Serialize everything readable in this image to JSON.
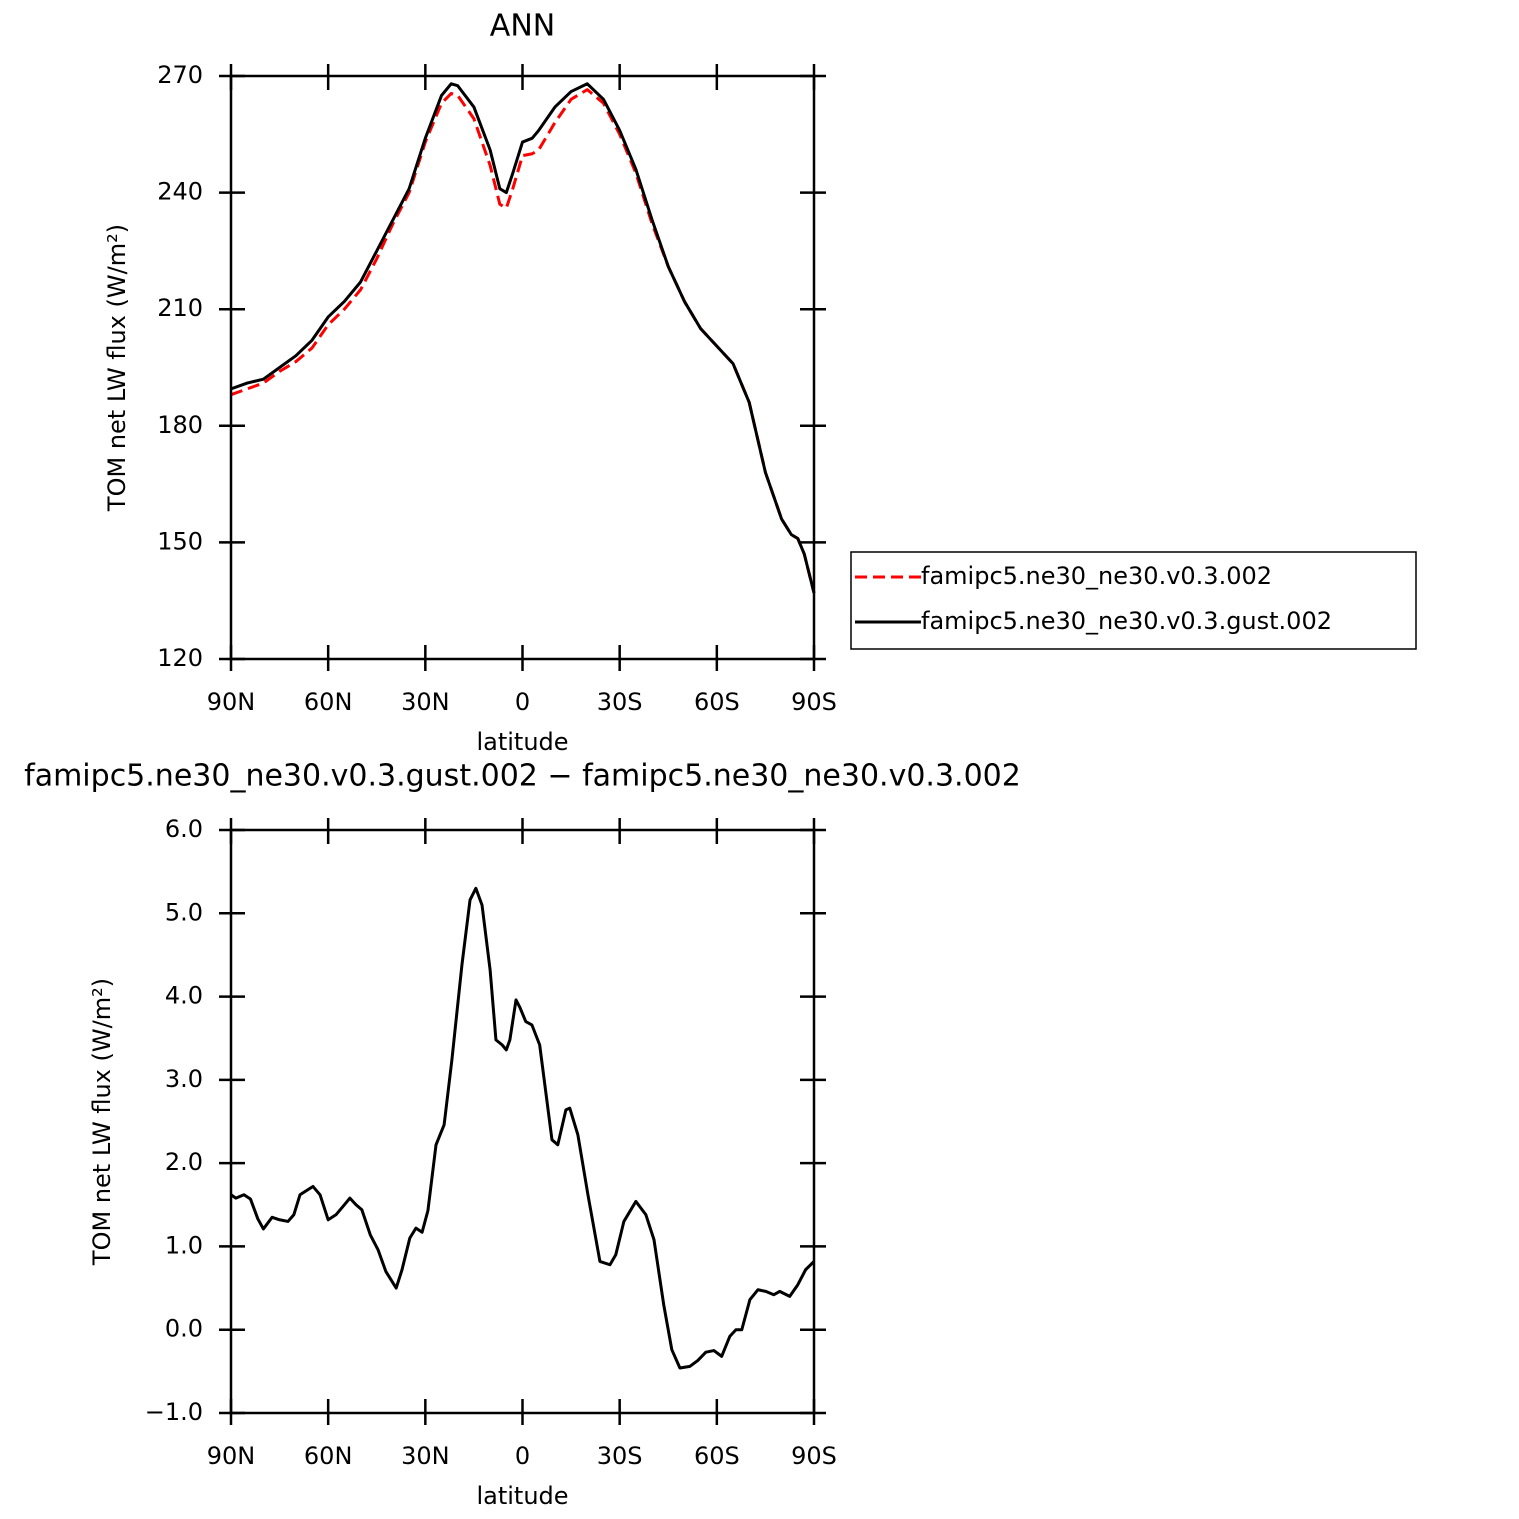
{
  "chart_data": [
    {
      "type": "line",
      "title": "ANN",
      "x_label": "latitude",
      "y_label": "TOM net LW flux (W/m²)",
      "x": [
        90,
        85,
        80,
        75,
        70,
        65,
        60,
        55,
        50,
        45,
        40,
        35,
        30,
        25,
        22,
        20,
        15,
        10,
        7,
        5,
        3,
        0,
        -3,
        -5,
        -10,
        -15,
        -20,
        -25,
        -30,
        -35,
        -40,
        -45,
        -50,
        -55,
        -60,
        -65,
        -70,
        -75,
        -80,
        -83,
        -85,
        -87,
        -90
      ],
      "series": [
        {
          "name": "famipc5.ne30_ne30.v0.3.002",
          "color": "#ff0000",
          "linestyle": "dashed",
          "values": [
            188,
            189.5,
            191,
            194,
            196.5,
            200,
            206,
            210,
            215,
            223,
            232,
            240,
            253,
            263,
            265.5,
            265,
            259,
            247,
            237,
            236,
            241,
            249.5,
            250,
            251,
            258,
            264,
            266.5,
            263,
            255,
            245,
            232,
            221,
            212,
            205,
            200.5,
            196,
            186,
            168,
            156,
            152,
            151,
            147,
            137
          ]
        },
        {
          "name": "famipc5.ne30_ne30.v0.3.gust.002",
          "color": "#000000",
          "linestyle": "solid",
          "values": [
            189.5,
            191,
            192,
            195,
            198,
            202,
            208,
            212,
            217,
            225,
            233,
            241,
            254,
            265,
            268,
            267.5,
            262,
            251,
            241,
            240,
            245,
            253,
            254,
            256,
            262,
            266,
            268,
            264,
            256,
            246,
            233,
            221,
            212,
            205,
            200.5,
            196,
            186,
            168,
            156,
            152,
            151,
            147,
            137
          ]
        }
      ],
      "xlim": [
        90,
        -90
      ],
      "xticks": [
        {
          "value": 90,
          "label": "90N"
        },
        {
          "value": 60,
          "label": "60N"
        },
        {
          "value": 30,
          "label": "30N"
        },
        0,
        {
          "value": -30,
          "label": "30S"
        },
        {
          "value": -60,
          "label": "60S"
        },
        {
          "value": -90,
          "label": "90S"
        }
      ],
      "ylim": [
        120,
        270
      ],
      "yticks": [
        120,
        150,
        180,
        210,
        240,
        270
      ],
      "legend": "right"
    },
    {
      "type": "line",
      "title": "famipc5.ne30_ne30.v0.3.gust.002 − famipc5.ne30_ne30.v0.3.002",
      "x_label": "latitude",
      "y_label": "TOM net LW flux (W/m²)",
      "x": [
        90,
        88.5,
        86,
        84,
        81.7,
        80,
        77.3,
        75,
        72.4,
        70.6,
        68.7,
        64.7,
        62.5,
        60,
        57.6,
        55,
        53.3,
        51.4,
        49.6,
        47,
        44.6,
        42.2,
        39,
        37.2,
        34.8,
        32.9,
        31,
        29.2,
        26.7,
        24.2,
        21.8,
        18.7,
        16.2,
        14.4,
        12.5,
        10,
        8.2,
        6.3,
        5,
        3.9,
        2,
        0.8,
        -1,
        -2.9,
        -5.3,
        -9.1,
        -10.9,
        -13.4,
        -14.6,
        -17.1,
        -20.2,
        -23.9,
        -27,
        -28.8,
        -31.3,
        -35,
        -38.1,
        -40.6,
        -43.6,
        -46.1,
        -48.6,
        -51.7,
        -54.1,
        -56.6,
        -59.1,
        -61.5,
        -64,
        -65.9,
        -67.7,
        -70.2,
        -72.7,
        -75.1,
        -77.6,
        -79.4,
        -82.5,
        -85,
        -87.4,
        -90
      ],
      "series": [
        {
          "name": "famipc5.ne30_ne30.v0.3.gust.002 − famipc5.ne30_ne30.v0.3.002",
          "color": "#000000",
          "linestyle": "solid",
          "values": [
            1.62,
            1.58,
            1.62,
            1.57,
            1.33,
            1.21,
            1.35,
            1.32,
            1.3,
            1.38,
            1.62,
            1.72,
            1.62,
            1.32,
            1.38,
            1.5,
            1.58,
            1.5,
            1.44,
            1.14,
            0.96,
            0.7,
            0.5,
            0.72,
            1.1,
            1.22,
            1.17,
            1.43,
            2.22,
            2.46,
            3.24,
            4.38,
            5.16,
            5.3,
            5.1,
            4.32,
            3.48,
            3.42,
            3.36,
            3.48,
            3.96,
            3.87,
            3.7,
            3.66,
            3.42,
            2.28,
            2.22,
            2.64,
            2.66,
            2.34,
            1.62,
            0.82,
            0.78,
            0.9,
            1.3,
            1.54,
            1.38,
            1.08,
            0.3,
            -0.24,
            -0.46,
            -0.44,
            -0.37,
            -0.27,
            -0.25,
            -0.32,
            -0.08,
            0.0,
            0.0,
            0.36,
            0.48,
            0.46,
            0.42,
            0.46,
            0.4,
            0.54,
            0.72,
            0.82
          ]
        }
      ],
      "xlim": [
        90,
        -90
      ],
      "xticks": [
        {
          "value": 90,
          "label": "90N"
        },
        {
          "value": 60,
          "label": "60N"
        },
        {
          "value": 30,
          "label": "30N"
        },
        0,
        {
          "value": -30,
          "label": "30S"
        },
        {
          "value": -60,
          "label": "60S"
        },
        {
          "value": -90,
          "label": "90S"
        }
      ],
      "ylim": [
        -1,
        6
      ],
      "yticks": [
        {
          "value": -1,
          "label": "−1.0"
        },
        {
          "value": 0,
          "label": "0.0"
        },
        {
          "value": 1,
          "label": "1.0"
        },
        {
          "value": 2,
          "label": "2.0"
        },
        {
          "value": 3,
          "label": "3.0"
        },
        {
          "value": 4,
          "label": "4.0"
        },
        {
          "value": 5,
          "label": "5.0"
        },
        {
          "value": 6,
          "label": "6.0"
        }
      ]
    }
  ]
}
